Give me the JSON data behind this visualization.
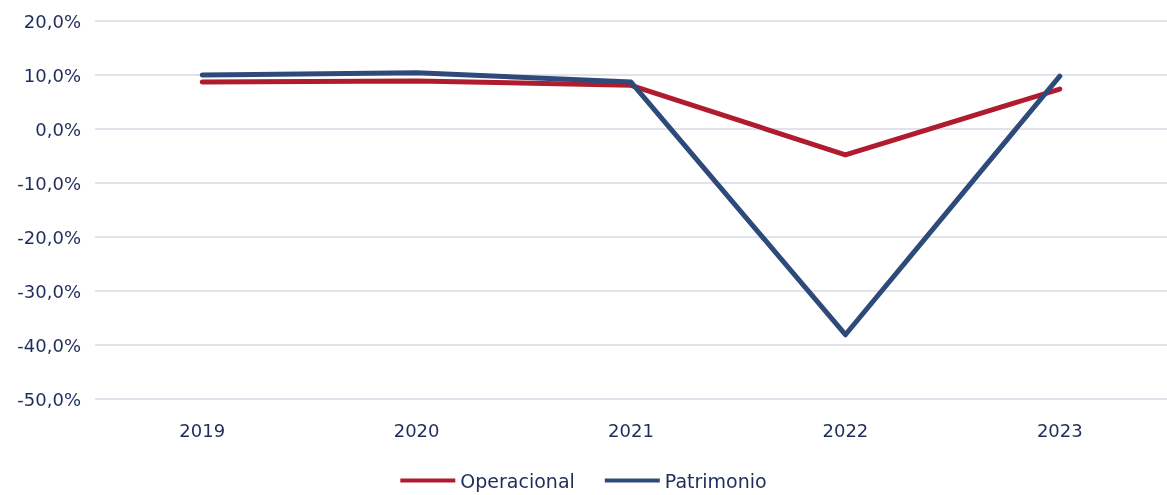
{
  "chart_data": {
    "type": "line",
    "categories": [
      "2019",
      "2020",
      "2021",
      "2022",
      "2023"
    ],
    "series": [
      {
        "name": "Operacional",
        "color": "#b01c2e",
        "values": [
          8.7,
          8.9,
          8.1,
          -4.8,
          7.4
        ]
      },
      {
        "name": "Patrimonio",
        "color": "#2e4a7a",
        "values": [
          10.0,
          10.4,
          8.7,
          -38.1,
          9.8
        ]
      }
    ],
    "ylim": [
      -50,
      20
    ],
    "yticks": [
      {
        "value": -50,
        "label": "-50,0%"
      },
      {
        "value": -40,
        "label": "-40,0%"
      },
      {
        "value": -30,
        "label": "-30,0%"
      },
      {
        "value": -20,
        "label": "-20,0%"
      },
      {
        "value": -10,
        "label": "-10,0%"
      },
      {
        "value": 0,
        "label": "0,0%"
      },
      {
        "value": 10,
        "label": "10,0%"
      },
      {
        "value": 20,
        "label": "20,0%"
      }
    ],
    "grid": "y",
    "legend": "bottom",
    "marker": "none",
    "line_style": "solid"
  }
}
